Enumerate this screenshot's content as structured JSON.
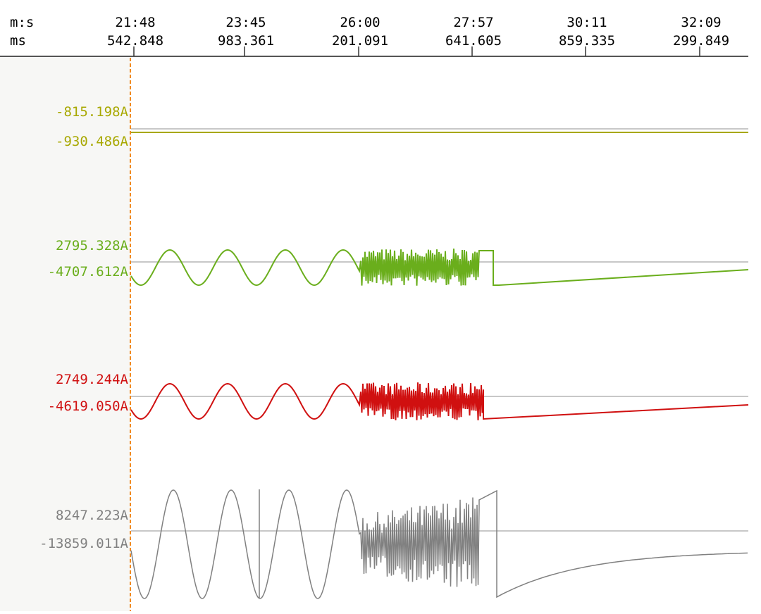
{
  "header": {
    "row_labels": [
      "m:s",
      "ms"
    ],
    "ticks": [
      {
        "time": "21:48",
        "ms": "542.848"
      },
      {
        "time": "23:45",
        "ms": "983.361"
      },
      {
        "time": "26:00",
        "ms": "201.091"
      },
      {
        "time": "27:57",
        "ms": "641.605"
      },
      {
        "time": "30:11",
        "ms": "859.335"
      },
      {
        "time": "32:09",
        "ms": "299.849"
      }
    ]
  },
  "channels": [
    {
      "max_label": "-815.198A",
      "min_label": "-930.486A",
      "color": "#a8a800"
    },
    {
      "max_label": "2795.328A",
      "min_label": "-4707.612A",
      "color": "#6aae1c"
    },
    {
      "max_label": "2749.244A",
      "min_label": "-4619.050A",
      "color": "#d01010"
    },
    {
      "max_label": "8247.223A",
      "min_label": "-13859.011A",
      "color": "#808080"
    }
  ]
}
